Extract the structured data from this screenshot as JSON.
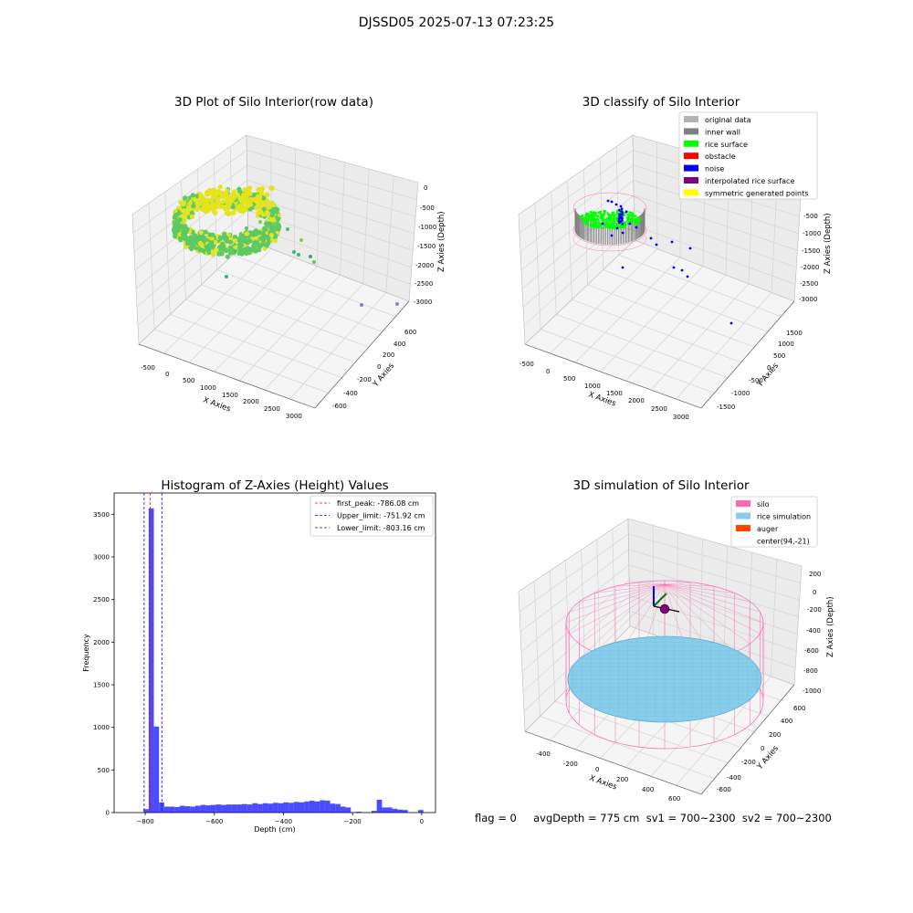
{
  "figure_title": "DJSSD05 2025-07-13 07:23:25",
  "footer_text": "flag = 0     avgDepth = 775 cm  sv1 = 700~2300  sv2 = 700~2300",
  "panels": {
    "raw": {
      "title": "3D Plot of Silo Interior(row data)",
      "xlabel": "X Axies",
      "ylabel": "Y Axies",
      "zlabel": "Z Axies (Depth)",
      "xticks": [
        "-500",
        "0",
        "500",
        "1000",
        "1500",
        "2000",
        "2500",
        "3000"
      ],
      "yticks": [
        "-600",
        "-400",
        "-200",
        "0",
        "200",
        "400",
        "600"
      ],
      "zticks": [
        "0",
        "-500",
        "-1000",
        "-1500",
        "-2000",
        "-2500",
        "-3000"
      ]
    },
    "classify": {
      "title": "3D classify of Silo Interior",
      "xlabel": "X Axies",
      "ylabel": "Y Axies",
      "zlabel": "Z Axies (Depth)",
      "xticks": [
        "-500",
        "0",
        "500",
        "1000",
        "1500",
        "2000",
        "2500",
        "3000"
      ],
      "yticks": [
        "-1500",
        "-1000",
        "-500",
        "0",
        "500",
        "1000",
        "1500"
      ],
      "zticks": [
        "0",
        "-500",
        "-1000",
        "-1500",
        "-2000",
        "-2500",
        "-3000"
      ],
      "legend": [
        {
          "label": "original data",
          "color": "#b3b3b3"
        },
        {
          "label": "inner wall",
          "color": "#808080"
        },
        {
          "label": "rice surface",
          "color": "#00ff00"
        },
        {
          "label": "obstacle",
          "color": "#ff0000"
        },
        {
          "label": "noise",
          "color": "#0000ff"
        },
        {
          "label": "interpolated rice surface",
          "color": "#800080"
        },
        {
          "label": "symmetric generated points",
          "color": "#ffff00"
        }
      ]
    },
    "simulation": {
      "title": "3D simulation of Silo Interior",
      "xlabel": "X Axies",
      "ylabel": "Y Axies",
      "zlabel": "Z Axies (Depth)",
      "xticks": [
        "-400",
        "-200",
        "0",
        "200",
        "400",
        "600"
      ],
      "yticks": [
        "-600",
        "-400",
        "-200",
        "0",
        "200",
        "400",
        "600"
      ],
      "zticks": [
        "200",
        "0",
        "-200",
        "-400",
        "-600",
        "-800",
        "-1000"
      ],
      "legend": [
        {
          "label": "silo",
          "color": "#ff69b4"
        },
        {
          "label": "rice simulation",
          "color": "#87ceeb"
        },
        {
          "label": "auger",
          "color": "#ff4500"
        },
        {
          "label": "center(94,-21)",
          "color": "#ffffff"
        }
      ]
    }
  },
  "chart_data": [
    {
      "type": "bar",
      "title": "Histogram of Z-Axies (Height) Values",
      "xlabel": "Depth (cm)",
      "ylabel": "Frequency",
      "xlim": [
        -890,
        40
      ],
      "ylim": [
        0,
        3750
      ],
      "xticks": [
        -800,
        -600,
        -400,
        -200,
        0
      ],
      "yticks": [
        0,
        500,
        1000,
        1500,
        2000,
        2500,
        3000,
        3500
      ],
      "bar_color": "#0000ff",
      "bin_width": 15,
      "bins": [
        [
          -805,
          40
        ],
        [
          -790,
          3570
        ],
        [
          -775,
          1010
        ],
        [
          -760,
          120
        ],
        [
          -745,
          70
        ],
        [
          -730,
          70
        ],
        [
          -715,
          65
        ],
        [
          -700,
          80
        ],
        [
          -685,
          75
        ],
        [
          -670,
          70
        ],
        [
          -655,
          80
        ],
        [
          -640,
          90
        ],
        [
          -625,
          85
        ],
        [
          -610,
          90
        ],
        [
          -595,
          95
        ],
        [
          -580,
          90
        ],
        [
          -565,
          95
        ],
        [
          -550,
          95
        ],
        [
          -535,
          95
        ],
        [
          -520,
          100
        ],
        [
          -505,
          95
        ],
        [
          -490,
          110
        ],
        [
          -475,
          100
        ],
        [
          -460,
          110
        ],
        [
          -445,
          105
        ],
        [
          -430,
          115
        ],
        [
          -415,
          110
        ],
        [
          -400,
          120
        ],
        [
          -385,
          115
        ],
        [
          -370,
          125
        ],
        [
          -355,
          120
        ],
        [
          -340,
          130
        ],
        [
          -325,
          140
        ],
        [
          -310,
          130
        ],
        [
          -295,
          145
        ],
        [
          -280,
          140
        ],
        [
          -265,
          105
        ],
        [
          -250,
          100
        ],
        [
          -235,
          70
        ],
        [
          -220,
          60
        ],
        [
          -205,
          5
        ],
        [
          -190,
          10
        ],
        [
          -175,
          5
        ],
        [
          -145,
          20
        ],
        [
          -130,
          150
        ],
        [
          -115,
          60
        ],
        [
          -100,
          60
        ],
        [
          -85,
          45
        ],
        [
          -70,
          35
        ],
        [
          -55,
          30
        ],
        [
          -10,
          30
        ]
      ],
      "lines": [
        {
          "label": "first_peak: -786.08 cm",
          "x": -786.08,
          "color": "#ff0000"
        },
        {
          "label": "Upper_limit: -751.92 cm",
          "x": -751.92,
          "color": "#0000ff"
        },
        {
          "label": "Lower_limit: -803.16 cm",
          "x": -803.16,
          "color": "#0000ff"
        }
      ]
    }
  ]
}
